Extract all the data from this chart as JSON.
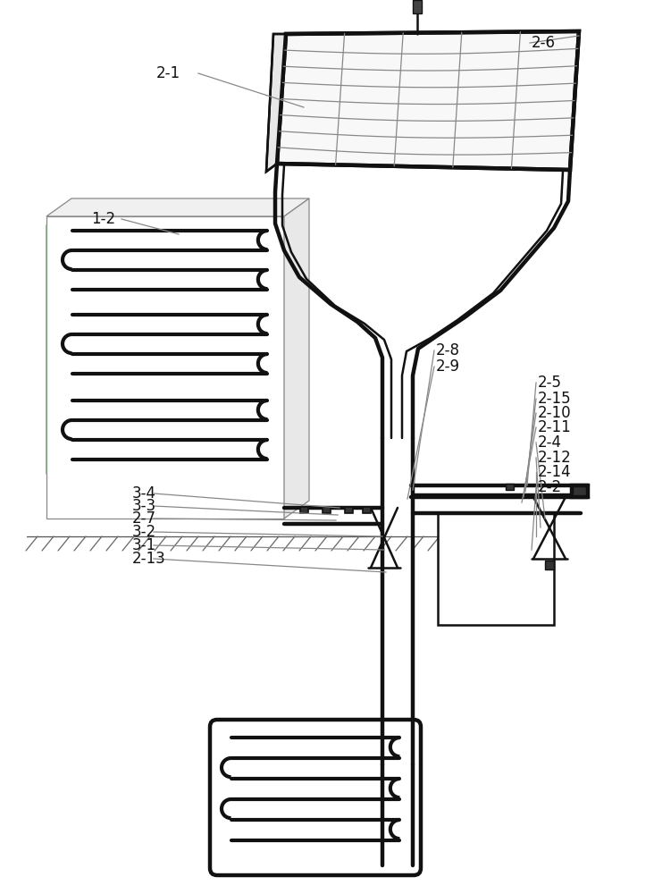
{
  "bg_color": "#ffffff",
  "line_color": "#111111",
  "thin_line_color": "#888888",
  "label_color": "#111111",
  "font_size": 12,
  "lw_thick": 3.2,
  "lw_med": 1.8,
  "lw_thin": 0.9
}
